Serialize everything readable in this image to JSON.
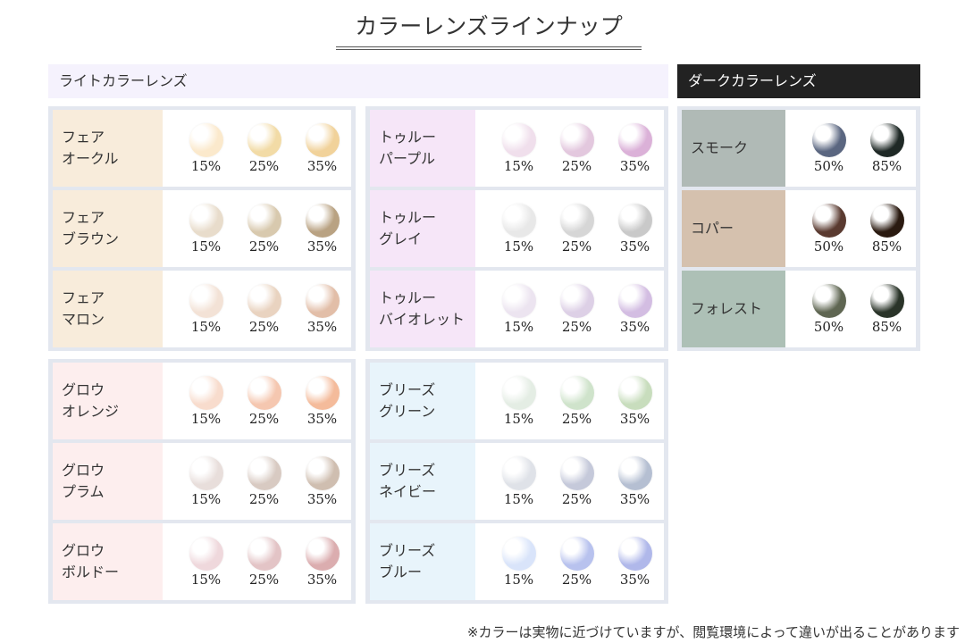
{
  "title": "カラーレンズラインナップ",
  "light_header": "ライトカラーレンズ",
  "dark_header": "ダークカラーレンズ",
  "note": "※カラーは実物に近づけていますが、閲覧環境によって違いが出ることがあります",
  "groups": [
    {
      "id": "fair",
      "label_bg": "#f8ecdb",
      "rows": [
        {
          "name": "フェア\nオークル",
          "swatches": [
            {
              "pct": "15%",
              "color": "#fbe9cc"
            },
            {
              "pct": "25%",
              "color": "#f2dba6"
            },
            {
              "pct": "35%",
              "color": "#f1d29a"
            }
          ]
        },
        {
          "name": "フェア\nブラウン",
          "swatches": [
            {
              "pct": "15%",
              "color": "#e8dccb"
            },
            {
              "pct": "25%",
              "color": "#d8c9ae"
            },
            {
              "pct": "35%",
              "color": "#b9a282"
            }
          ]
        },
        {
          "name": "フェア\nマロン",
          "swatches": [
            {
              "pct": "15%",
              "color": "#f3e2d6"
            },
            {
              "pct": "25%",
              "color": "#e9d3c0"
            },
            {
              "pct": "35%",
              "color": "#e2bea8"
            }
          ]
        }
      ]
    },
    {
      "id": "true",
      "label_bg": "#f6e6f8",
      "rows": [
        {
          "name": "トゥルー\nパープル",
          "swatches": [
            {
              "pct": "15%",
              "color": "#f0dfec"
            },
            {
              "pct": "25%",
              "color": "#e3c8de"
            },
            {
              "pct": "35%",
              "color": "#dbb1d8"
            }
          ]
        },
        {
          "name": "トゥルー\nグレイ",
          "swatches": [
            {
              "pct": "15%",
              "color": "#e8e8e8"
            },
            {
              "pct": "25%",
              "color": "#d6d6d6"
            },
            {
              "pct": "35%",
              "color": "#c9c9c9"
            }
          ]
        },
        {
          "name": "トゥルー\nバイオレット",
          "swatches": [
            {
              "pct": "15%",
              "color": "#ece4f0"
            },
            {
              "pct": "25%",
              "color": "#ddd0e6"
            },
            {
              "pct": "35%",
              "color": "#d3bde2"
            }
          ]
        }
      ]
    },
    {
      "id": "glow",
      "label_bg": "#fdeeee",
      "rows": [
        {
          "name": "グロウ\nオレンジ",
          "swatches": [
            {
              "pct": "15%",
              "color": "#f8dccd"
            },
            {
              "pct": "25%",
              "color": "#f5c7b0"
            },
            {
              "pct": "35%",
              "color": "#f4bb9b"
            }
          ]
        },
        {
          "name": "グロウ\nプラム",
          "swatches": [
            {
              "pct": "15%",
              "color": "#e8dedb"
            },
            {
              "pct": "25%",
              "color": "#d8cac2"
            },
            {
              "pct": "35%",
              "color": "#cfbeb0"
            }
          ]
        },
        {
          "name": "グロウ\nボルドー",
          "swatches": [
            {
              "pct": "15%",
              "color": "#efd8dc"
            },
            {
              "pct": "25%",
              "color": "#e3c4c6"
            },
            {
              "pct": "35%",
              "color": "#dbadaf"
            }
          ]
        }
      ]
    },
    {
      "id": "breeze",
      "label_bg": "#e8f4fb",
      "rows": [
        {
          "name": "ブリーズ\nグリーン",
          "swatches": [
            {
              "pct": "15%",
              "color": "#e4ede4"
            },
            {
              "pct": "25%",
              "color": "#cfe3cb"
            },
            {
              "pct": "35%",
              "color": "#c8ddbd"
            }
          ]
        },
        {
          "name": "ブリーズ\nネイビー",
          "swatches": [
            {
              "pct": "15%",
              "color": "#dfe2e8"
            },
            {
              "pct": "25%",
              "color": "#c5c9da"
            },
            {
              "pct": "35%",
              "color": "#b5bfd2"
            }
          ]
        },
        {
          "name": "ブリーズ\nブルー",
          "swatches": [
            {
              "pct": "15%",
              "color": "#d9e4fa"
            },
            {
              "pct": "25%",
              "color": "#b8c2ee"
            },
            {
              "pct": "35%",
              "color": "#b0b8ea"
            }
          ]
        }
      ]
    },
    {
      "id": "dark",
      "rows": [
        {
          "name": "スモーク",
          "label_bg": "#b0bab6",
          "swatches": [
            {
              "pct": "50%",
              "color": "#5a6680"
            },
            {
              "pct": "85%",
              "color": "#1f2926"
            }
          ]
        },
        {
          "name": "コパー",
          "label_bg": "#d5c1ae",
          "swatches": [
            {
              "pct": "50%",
              "color": "#5a3a30"
            },
            {
              "pct": "85%",
              "color": "#2a1a10"
            }
          ]
        },
        {
          "name": "フォレスト",
          "label_bg": "#adc0b6",
          "swatches": [
            {
              "pct": "50%",
              "color": "#5f6652"
            },
            {
              "pct": "85%",
              "color": "#2a3429"
            }
          ]
        }
      ]
    }
  ]
}
